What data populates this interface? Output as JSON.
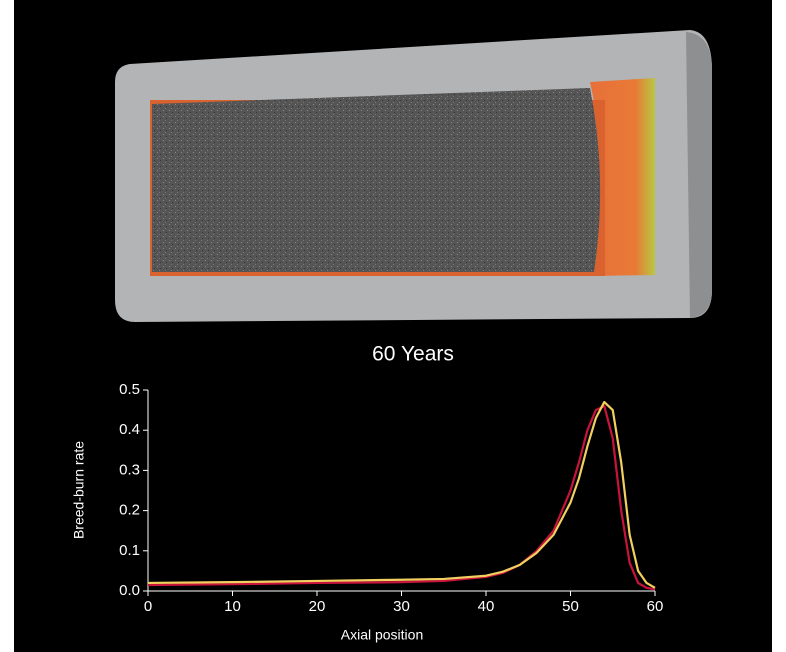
{
  "chart_data": {
    "type": "line",
    "title": "60 Years",
    "xlabel": "Axial position",
    "ylabel": "Breed-burn rate",
    "x": [
      0,
      10,
      20,
      30,
      35,
      40,
      42,
      44,
      46,
      48,
      50,
      51,
      52,
      53,
      54,
      55,
      56,
      57,
      58,
      59,
      60
    ],
    "series": [
      {
        "color": "#c8143c",
        "values": [
          0.015,
          0.017,
          0.02,
          0.022,
          0.025,
          0.035,
          0.045,
          0.065,
          0.1,
          0.15,
          0.25,
          0.32,
          0.4,
          0.45,
          0.46,
          0.38,
          0.2,
          0.07,
          0.02,
          0.008,
          0.004
        ]
      },
      {
        "color": "#f2d060",
        "values": [
          0.02,
          0.022,
          0.025,
          0.028,
          0.03,
          0.038,
          0.048,
          0.065,
          0.095,
          0.14,
          0.22,
          0.28,
          0.36,
          0.43,
          0.47,
          0.45,
          0.32,
          0.14,
          0.05,
          0.02,
          0.008
        ]
      }
    ],
    "xlim": [
      0,
      60
    ],
    "xticks": [
      0,
      10,
      20,
      30,
      40,
      50,
      60
    ],
    "ylim": [
      0,
      0.5
    ],
    "yticks": [
      {
        "value": 0,
        "label": "0.0"
      },
      0.1,
      0.2,
      0.3,
      0.4,
      0.5
    ]
  }
}
